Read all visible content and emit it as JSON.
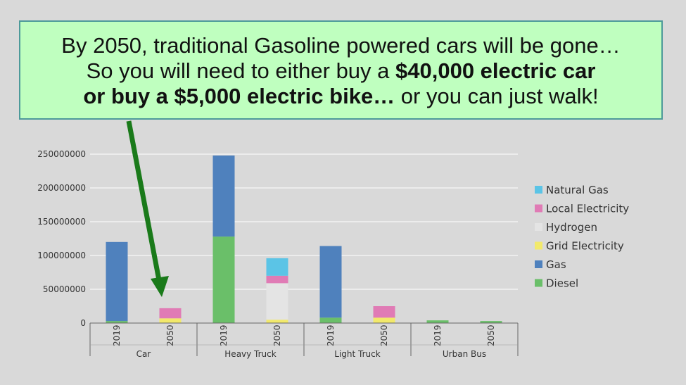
{
  "callout": {
    "line1": "By 2050, traditional Gasoline powered cars will be gone…",
    "line2_prefix": "So you will need to either buy a ",
    "line2_bold": "$40,000 electric car",
    "line3_bold": "or buy a $5,000 electric bike…",
    "line3_suffix": " or you can just walk!",
    "background_color": "#bfffbf",
    "arrow_color": "#1a7a1a"
  },
  "chart_data": {
    "type": "bar",
    "stacked": true,
    "groups": [
      "Car",
      "Heavy Truck",
      "Light Truck",
      "Urban Bus"
    ],
    "years": [
      "2019",
      "2050"
    ],
    "categories": [
      "Car 2019",
      "Car 2050",
      "Heavy Truck 2019",
      "Heavy Truck 2050",
      "Light Truck 2019",
      "Light Truck 2050",
      "Urban Bus 2019",
      "Urban Bus 2050"
    ],
    "series": [
      {
        "name": "Diesel",
        "color": "#6abf69",
        "values": [
          3000000,
          0,
          128000000,
          0,
          8000000,
          0,
          4000000,
          3000000
        ]
      },
      {
        "name": "Gas",
        "color": "#4f81bd",
        "values": [
          117000000,
          0,
          120000000,
          0,
          106000000,
          0,
          0,
          0
        ]
      },
      {
        "name": "Grid Electricity",
        "color": "#f2e96b",
        "values": [
          0,
          7000000,
          0,
          5000000,
          0,
          8000000,
          0,
          0
        ]
      },
      {
        "name": "Hydrogen",
        "color": "#e4e4e4",
        "values": [
          0,
          0,
          0,
          54000000,
          0,
          0,
          0,
          0
        ]
      },
      {
        "name": "Local Electricity",
        "color": "#e07bb5",
        "values": [
          0,
          15000000,
          0,
          11000000,
          0,
          17000000,
          0,
          0
        ]
      },
      {
        "name": "Natural Gas",
        "color": "#5bc4e6",
        "values": [
          0,
          0,
          0,
          26000000,
          0,
          0,
          0,
          0
        ]
      }
    ],
    "legend_order": [
      "Natural Gas",
      "Local Electricity",
      "Hydrogen",
      "Grid Electricity",
      "Gas",
      "Diesel"
    ],
    "y_ticks": [
      "0",
      "50000000",
      "100000000",
      "150000000",
      "200000000",
      "250000000"
    ],
    "ylim": [
      0,
      250000000
    ],
    "grid": true,
    "legend_position": "right"
  }
}
